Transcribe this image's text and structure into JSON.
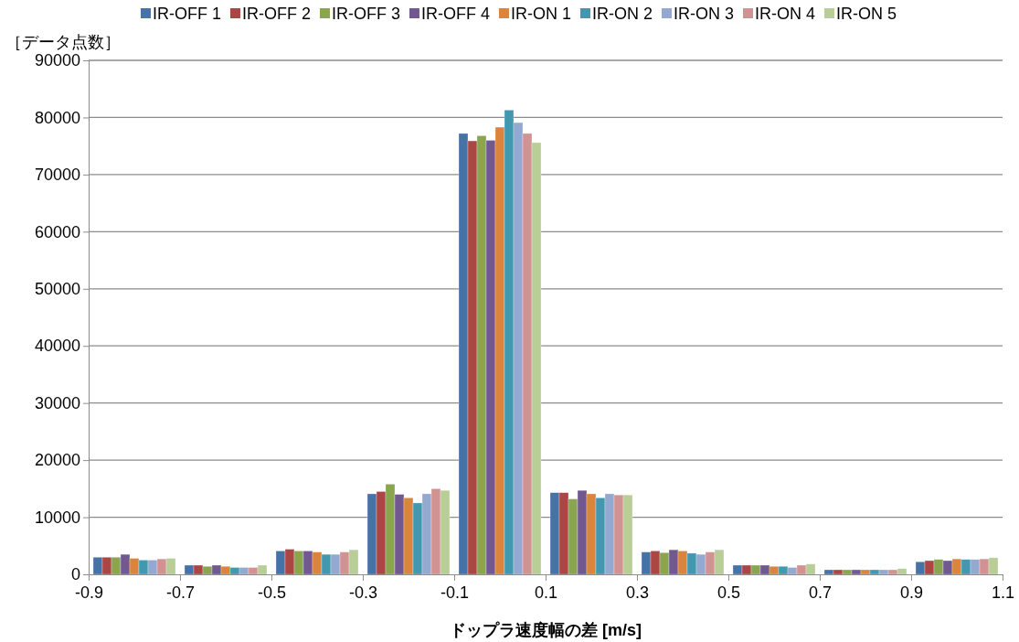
{
  "chart_data": {
    "type": "bar",
    "xlabel": "ドップラ速度幅の差 [m/s]",
    "ylabel": "［データ点数］",
    "x": [
      -0.8,
      -0.6,
      -0.4,
      -0.2,
      0.0,
      0.2,
      0.4,
      0.6,
      0.8,
      1.0
    ],
    "xlim": [
      -0.9,
      1.1
    ],
    "xticks": [
      {
        "value": -0.9,
        "label": "-0.9"
      },
      {
        "value": -0.7,
        "label": "-0.7"
      },
      {
        "value": -0.5,
        "label": "-0.5"
      },
      {
        "value": -0.3,
        "label": "-0.3"
      },
      {
        "value": -0.1,
        "label": "-0.1"
      },
      {
        "value": 0.1,
        "label": "0.1"
      },
      {
        "value": 0.3,
        "label": "0.3"
      },
      {
        "value": 0.5,
        "label": "0.5"
      },
      {
        "value": 0.7,
        "label": "0.7"
      },
      {
        "value": 0.9,
        "label": "0.9"
      },
      {
        "value": 1.1,
        "label": "1.1"
      }
    ],
    "ylim": [
      0,
      90000
    ],
    "yticks": [
      0,
      10000,
      20000,
      30000,
      40000,
      50000,
      60000,
      70000,
      80000,
      90000
    ],
    "grid": "y",
    "legend": "top",
    "series": [
      {
        "name": "IR-OFF 1",
        "color": "#4572a7",
        "values": [
          3000,
          1600,
          4100,
          14100,
          77200,
          14300,
          3900,
          1600,
          800,
          2200
        ]
      },
      {
        "name": "IR-OFF 2",
        "color": "#aa4643",
        "values": [
          3000,
          1600,
          4400,
          14500,
          75900,
          14300,
          4100,
          1600,
          800,
          2400
        ]
      },
      {
        "name": "IR-OFF 3",
        "color": "#89a54e",
        "values": [
          3000,
          1400,
          4100,
          15800,
          76800,
          13200,
          3800,
          1600,
          800,
          2600
        ]
      },
      {
        "name": "IR-OFF 4",
        "color": "#71588f",
        "values": [
          3500,
          1600,
          4100,
          14000,
          76000,
          14700,
          4300,
          1600,
          800,
          2400
        ]
      },
      {
        "name": "IR-ON 1",
        "color": "#db843d",
        "values": [
          2800,
          1400,
          3900,
          13400,
          78300,
          14100,
          4100,
          1400,
          800,
          2700
        ]
      },
      {
        "name": "IR-ON 2",
        "color": "#4198af",
        "values": [
          2500,
          1200,
          3500,
          12500,
          81300,
          13400,
          3700,
          1400,
          800,
          2600
        ]
      },
      {
        "name": "IR-ON 3",
        "color": "#93a9cf",
        "values": [
          2500,
          1200,
          3500,
          14100,
          79100,
          14100,
          3500,
          1200,
          800,
          2600
        ]
      },
      {
        "name": "IR-ON 4",
        "color": "#d19392",
        "values": [
          2700,
          1200,
          3900,
          15000,
          77200,
          13900,
          3900,
          1600,
          800,
          2700
        ]
      },
      {
        "name": "IR-ON 5",
        "color": "#b9cd96",
        "values": [
          2800,
          1600,
          4300,
          14700,
          75600,
          13900,
          4300,
          1800,
          1000,
          2900
        ]
      }
    ]
  }
}
